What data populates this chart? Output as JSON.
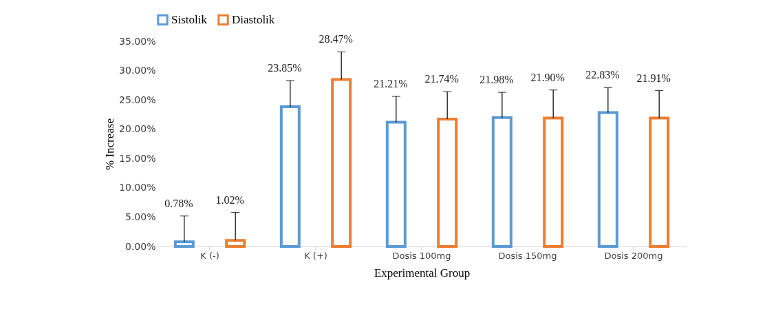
{
  "chart_data": {
    "type": "bar",
    "xlabel": "Experimental Group",
    "ylabel": "% Increase",
    "categories": [
      "K (-)",
      "K (+)",
      "Dosis 100mg",
      "Dosis 150mg",
      "Dosis 200mg"
    ],
    "series": [
      {
        "name": "Sistolik",
        "color": "#5b9bd5",
        "values": [
          0.78,
          23.85,
          21.21,
          21.98,
          22.83
        ],
        "value_labels": [
          "0.78%",
          "23.85%",
          "21.21%",
          "21.98%",
          "22.83%"
        ],
        "errors": [
          [
            0.78,
            5.2
          ],
          [
            23.85,
            28.3
          ],
          [
            21.21,
            25.6
          ],
          [
            21.98,
            26.3
          ],
          [
            22.83,
            27.1
          ]
        ]
      },
      {
        "name": "Diastolik",
        "color": "#ed7d31",
        "values": [
          1.02,
          28.47,
          21.74,
          21.9,
          21.91
        ],
        "value_labels": [
          "1.02%",
          "28.47%",
          "21.74%",
          "21.90%",
          "21.91%"
        ],
        "errors": [
          [
            1.02,
            5.8
          ],
          [
            28.47,
            33.2
          ],
          [
            21.74,
            26.4
          ],
          [
            21.9,
            26.7
          ],
          [
            21.91,
            26.6
          ]
        ]
      }
    ],
    "ylim": [
      0,
      35
    ],
    "yticks": [
      {
        "value": 0,
        "label": "0.00%"
      },
      {
        "value": 5,
        "label": "5.00%"
      },
      {
        "value": 10,
        "label": "10.00%"
      },
      {
        "value": 15,
        "label": "15.00%"
      },
      {
        "value": 20,
        "label": "20.00%"
      },
      {
        "value": 25,
        "label": "25.00%"
      },
      {
        "value": 30,
        "label": "30.00%"
      },
      {
        "value": 35,
        "label": "35.00%"
      }
    ],
    "grid": false,
    "legend": "top"
  }
}
